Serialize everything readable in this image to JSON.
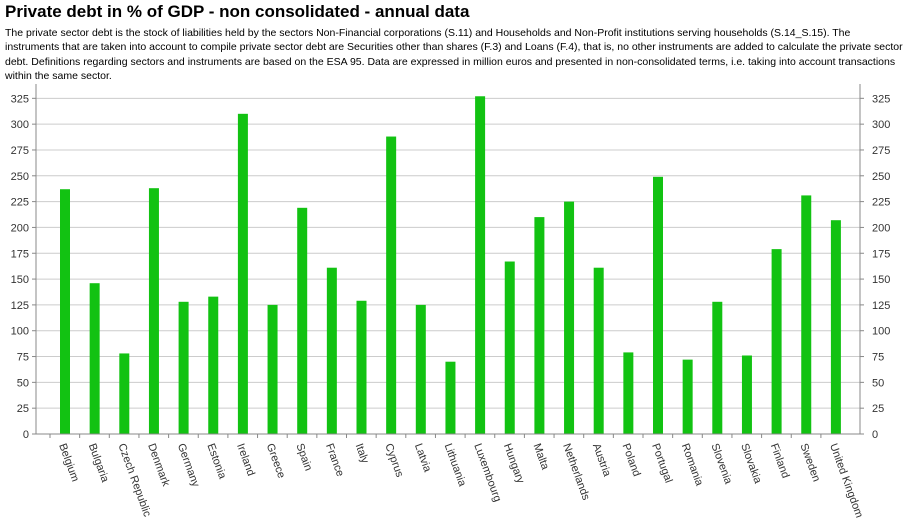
{
  "title": "Private debt in % of GDP - non consolidated - annual data",
  "description": "The private sector debt is the stock of liabilities held by the sectors Non-Financial corporations (S.11) and Households and Non-Profit institutions serving households (S.14_S.15). The instruments that are taken into account to compile private sector debt are Securities other than shares (F.3) and Loans (F.4), that is, no other instruments are added to calculate the private sector debt. Definitions regarding sectors and instruments are based on the ESA 95. Data are expressed in million euros and presented in non-consolidated terms, i.e. taking into account transactions within the same sector.",
  "chart_data": {
    "type": "bar",
    "title": "Private debt in % of GDP - non consolidated - annual data",
    "xlabel": "",
    "ylabel": "",
    "ylim": [
      0,
      335
    ],
    "yticks": [
      0,
      25,
      50,
      75,
      100,
      125,
      150,
      175,
      200,
      225,
      250,
      275,
      300,
      325
    ],
    "grid": true,
    "legend": "none",
    "color": "#12c212",
    "categories": [
      "Belgium",
      "Bulgaria",
      "Czech Republic",
      "Denmark",
      "Germany",
      "Estonia",
      "Ireland",
      "Greece",
      "Spain",
      "France",
      "Italy",
      "Cyprus",
      "Latvia",
      "Lithuania",
      "Luxembourg",
      "Hungary",
      "Malta",
      "Netherlands",
      "Austria",
      "Poland",
      "Portugal",
      "Romania",
      "Slovenia",
      "Slovakia",
      "Finland",
      "Sweden",
      "United Kingdom"
    ],
    "values": [
      237,
      146,
      78,
      238,
      128,
      133,
      310,
      125,
      219,
      161,
      129,
      288,
      125,
      70,
      327,
      167,
      210,
      225,
      161,
      79,
      249,
      72,
      128,
      76,
      179,
      231,
      207
    ]
  }
}
